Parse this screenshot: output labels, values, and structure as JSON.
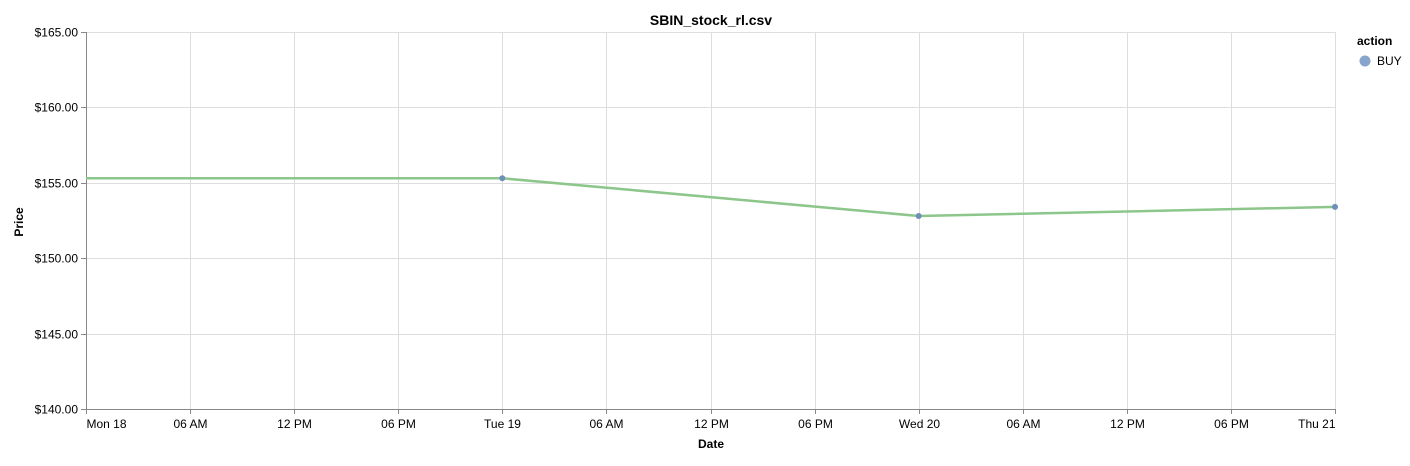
{
  "chart_data": {
    "type": "line",
    "title": "SBIN_stock_rl.csv",
    "xlabel": "Date",
    "ylabel": "Price",
    "ylim": [
      140,
      165
    ],
    "yticks": [
      140,
      145,
      150,
      155,
      160,
      165
    ],
    "ytick_labels": [
      "$140.00",
      "$145.00",
      "$150.00",
      "$155.00",
      "$160.00",
      "$165.00"
    ],
    "xlim": [
      "2024-03-18T00:00",
      "2024-03-21T00:00"
    ],
    "xticks": [
      {
        "t": "2024-03-18T00:00",
        "label": "Mon 18"
      },
      {
        "t": "2024-03-18T06:00",
        "label": "06 AM"
      },
      {
        "t": "2024-03-18T12:00",
        "label": "12 PM"
      },
      {
        "t": "2024-03-18T18:00",
        "label": "06 PM"
      },
      {
        "t": "2024-03-19T00:00",
        "label": "Tue 19"
      },
      {
        "t": "2024-03-19T06:00",
        "label": "06 AM"
      },
      {
        "t": "2024-03-19T12:00",
        "label": "12 PM"
      },
      {
        "t": "2024-03-19T18:00",
        "label": "06 PM"
      },
      {
        "t": "2024-03-20T00:00",
        "label": "Wed 20"
      },
      {
        "t": "2024-03-20T06:00",
        "label": "06 AM"
      },
      {
        "t": "2024-03-20T12:00",
        "label": "12 PM"
      },
      {
        "t": "2024-03-20T18:00",
        "label": "06 PM"
      },
      {
        "t": "2024-03-21T00:00",
        "label": "Thu 21"
      }
    ],
    "grid": true,
    "line_series": {
      "color": "#8cc68a",
      "points": [
        {
          "x": "2024-03-18T00:00",
          "y": 155.3
        },
        {
          "x": "2024-03-19T00:00",
          "y": 155.3
        },
        {
          "x": "2024-03-20T00:00",
          "y": 152.8
        },
        {
          "x": "2024-03-21T00:00",
          "y": 153.4
        }
      ]
    },
    "point_series": {
      "name": "BUY",
      "color": "#6d8fba",
      "points": [
        {
          "x": "2024-03-19T00:00",
          "y": 155.3
        },
        {
          "x": "2024-03-20T00:00",
          "y": 152.8
        },
        {
          "x": "2024-03-21T00:00",
          "y": 153.4
        }
      ]
    },
    "legend": {
      "title": "action",
      "placement": "top-right",
      "entries": [
        {
          "label": "BUY",
          "color": "#87a5cc"
        }
      ]
    }
  }
}
